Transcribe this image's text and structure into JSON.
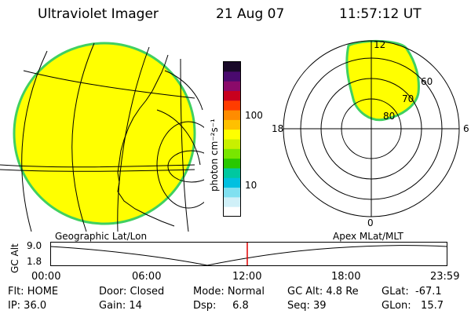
{
  "header": {
    "instrument": "Ultraviolet Imager",
    "date": "21 Aug 07",
    "time": "11:57:12 UT"
  },
  "colorbar": {
    "unit": "photon cm⁻²s⁻¹",
    "ticks": [
      "100",
      "10"
    ],
    "colors": [
      "#1a0a2a",
      "#4a0a6e",
      "#8b0a6a",
      "#c8001e",
      "#ff3c00",
      "#ff8c00",
      "#ffc000",
      "#ffff00",
      "#c8f000",
      "#78e600",
      "#28c800",
      "#00c8a0",
      "#00c0e0",
      "#80e0f0",
      "#d0f0f8",
      "#ffffff"
    ]
  },
  "polar": {
    "mlt_labels": {
      "top": "12",
      "left": "18",
      "right": "6",
      "bottom": "0"
    },
    "lat_labels": [
      "60",
      "70",
      "80"
    ]
  },
  "timeline": {
    "left_title": "Geographic Lat/Lon",
    "right_title": "Apex MLat/MLT",
    "axis_label": "GC Alt",
    "y_ticks": [
      "9.0",
      "1.8"
    ],
    "x_ticks": [
      "00:00",
      "06:00",
      "12:00",
      "18:00",
      "23:59"
    ],
    "current_time_color": "#e00000"
  },
  "status": {
    "flt": "Flt: HOME",
    "ip": "IP: 36.0",
    "door": "Door: Closed",
    "gain": "Gain: 14",
    "mode": "Mode: Normal",
    "dsp": "Dsp:     6.8",
    "gcalt": "GC Alt: 4.8 Re",
    "seq": "Seq: 39",
    "glat": "GLat:  -67.1",
    "glon": "GLon:   15.7"
  },
  "colors": {
    "image_fill": "#ffff00",
    "image_rim": "#40d060"
  }
}
